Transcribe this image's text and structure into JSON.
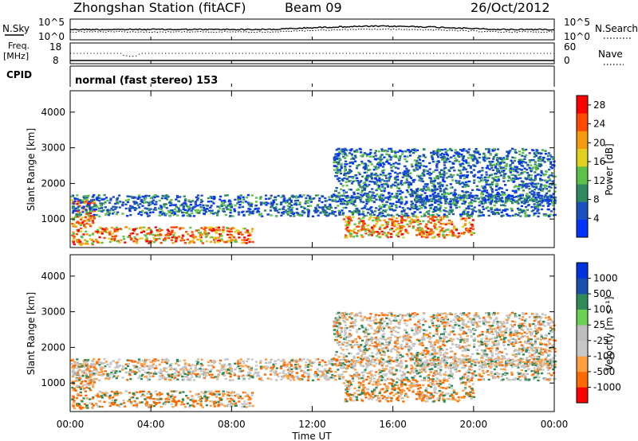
{
  "header": {
    "station": "Zhongshan Station (fitACF)",
    "beam": "Beam 09",
    "date": "26/Oct/2012"
  },
  "top_panels": {
    "nsky": {
      "left_label": "N.Sky",
      "left_ticks": [
        "10^5",
        "10^0"
      ],
      "right_ticks": [
        "10^5",
        "10^0"
      ],
      "right_label": "N.Search",
      "right_legend_style": "dotted"
    },
    "freq": {
      "left_label": [
        "Freq.",
        "[MHz]"
      ],
      "left_ticks": [
        "18",
        "8"
      ],
      "right_ticks": [
        "60",
        "0"
      ],
      "right_label": "Nave",
      "right_legend_style": "dotted"
    },
    "cpid": {
      "label": "CPID",
      "mode_text": "normal (fast stereo) 153"
    }
  },
  "colors": {
    "power_scale": [
      "#0033ff",
      "#1c4fbf",
      "#2e8a5e",
      "#5ec24a",
      "#e0d020",
      "#f49a10",
      "#ff4a00",
      "#ff0000"
    ],
    "velocity_scale": [
      "#ff0000",
      "#ff6a00",
      "#ffa040",
      "#c8c8c8",
      "#bdbdbd",
      "#6cd050",
      "#2f8a5a",
      "#1a4fb0",
      "#0033dd"
    ]
  },
  "chart_data": [
    {
      "type": "heatmap",
      "name": "power_panel",
      "ylabel": "Slant Range [km]",
      "xlabel": "",
      "y_ticks": [
        "1000",
        "2000",
        "3000",
        "4000"
      ],
      "y_tick_values": [
        1000,
        2000,
        3000,
        4000
      ],
      "ylim": [
        200,
        4600
      ],
      "xlim_hours": [
        0,
        24
      ],
      "colorbar": {
        "label": "Power [dB]",
        "ticks": [
          "4",
          "8",
          "12",
          "16",
          "20",
          "24",
          "28"
        ],
        "range": [
          0,
          30
        ]
      },
      "echo_regions": [
        {
          "t0": 0.0,
          "t1": 1.2,
          "r0": 300,
          "r1": 1600,
          "level": "strong"
        },
        {
          "t0": 1.2,
          "t1": 9.0,
          "r0": 350,
          "r1": 800,
          "level": "strong"
        },
        {
          "t0": 0.0,
          "t1": 24.0,
          "r0": 1100,
          "r1": 1700,
          "level": "weak"
        },
        {
          "t0": 13.0,
          "t1": 24.0,
          "r0": 1500,
          "r1": 3000,
          "level": "weak"
        },
        {
          "t0": 13.5,
          "t1": 20.0,
          "r0": 500,
          "r1": 1100,
          "level": "strong"
        }
      ]
    },
    {
      "type": "heatmap",
      "name": "velocity_panel",
      "ylabel": "Slant Range [km]",
      "xlabel": "Time UT",
      "x_ticks": [
        "00:00",
        "04:00",
        "08:00",
        "12:00",
        "16:00",
        "20:00",
        "00:00"
      ],
      "x_tick_hours": [
        0,
        4,
        8,
        12,
        16,
        20,
        24
      ],
      "y_ticks": [
        "1000",
        "2000",
        "3000",
        "4000"
      ],
      "y_tick_values": [
        1000,
        2000,
        3000,
        4000
      ],
      "ylim": [
        200,
        4600
      ],
      "xlim_hours": [
        0,
        24
      ],
      "colorbar": {
        "label": "Velocity [m s⁻¹]",
        "ticks": [
          "1000",
          "500",
          "100",
          "25",
          "-25",
          "-100",
          "-500",
          "-1000"
        ]
      }
    }
  ]
}
